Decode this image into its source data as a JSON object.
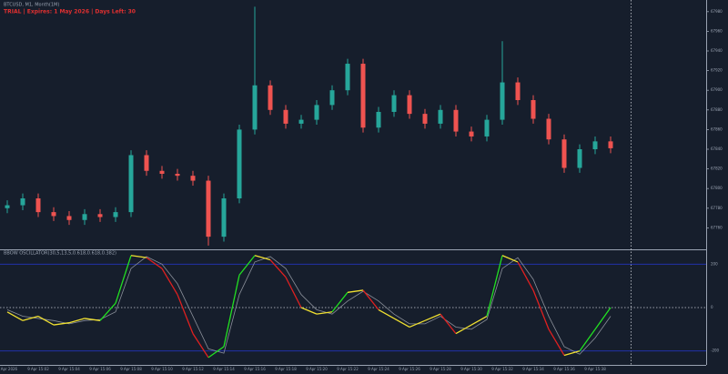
{
  "chart_data": [
    {
      "type": "candlestick",
      "title": "BTCUSD, M1, Month(1M)",
      "annotation": "TRIAL | Expires: 1 May 2026 | Days Left: 30",
      "annotation_color": "#e03030",
      "up_color": "#26a69a",
      "down_color": "#ef5350",
      "categories": [
        "9 Apr 2026",
        null,
        "9 Apr 15:02",
        null,
        "9 Apr 15:04",
        null,
        "9 Apr 15:06",
        null,
        "9 Apr 15:08",
        null,
        "9 Apr 15:10",
        null,
        "9 Apr 15:12",
        null,
        "9 Apr 15:14",
        null,
        "9 Apr 15:16",
        null,
        "9 Apr 15:18",
        null,
        "9 Apr 15:20",
        null,
        "9 Apr 15:22",
        null,
        "9 Apr 15:24",
        null,
        "9 Apr 15:26",
        null,
        "9 Apr 15:28",
        null,
        "9 Apr 15:30",
        null,
        "9 Apr 15:32",
        null,
        "9 Apr 15:34",
        null,
        "9 Apr 15:36",
        null,
        "9 Apr 15:38",
        null
      ],
      "open": [
        67780,
        67783,
        67790,
        67776,
        67772,
        67768,
        67774,
        67771,
        67776,
        67834,
        67818,
        67815,
        67813,
        67808,
        67751,
        67790,
        67860,
        67905,
        67880,
        67866,
        67870,
        67885,
        67900,
        67927,
        67862,
        67878,
        67895,
        67876,
        67866,
        67880,
        67858,
        67853,
        67870,
        67908,
        67890,
        67871,
        67850,
        67821,
        67840,
        67848
      ],
      "high": [
        67788,
        67795,
        67795,
        67781,
        67777,
        67779,
        67779,
        67781,
        67839,
        67839,
        67823,
        67820,
        67818,
        67813,
        67795,
        67865,
        67985,
        67910,
        67885,
        67875,
        67890,
        67905,
        67932,
        67932,
        67883,
        67900,
        67900,
        67881,
        67885,
        67885,
        67863,
        67875,
        67950,
        67913,
        67895,
        67876,
        67855,
        67845,
        67853,
        67853
      ],
      "low": [
        67775,
        67778,
        67771,
        67767,
        67763,
        67763,
        67766,
        67766,
        67771,
        67813,
        67810,
        67808,
        67803,
        67742,
        67746,
        67785,
        67855,
        67875,
        67861,
        67861,
        67865,
        67880,
        67895,
        67857,
        67857,
        67873,
        67871,
        67861,
        67861,
        67853,
        67848,
        67848,
        67865,
        67885,
        67866,
        67845,
        67816,
        67816,
        67835,
        67836
      ],
      "close": [
        67783,
        67790,
        67776,
        67772,
        67768,
        67774,
        67771,
        67776,
        67834,
        67818,
        67815,
        67813,
        67808,
        67751,
        67790,
        67860,
        67905,
        67880,
        67866,
        67870,
        67885,
        67900,
        67927,
        67862,
        67878,
        67895,
        67876,
        67866,
        67880,
        67858,
        67853,
        67870,
        67908,
        67890,
        67871,
        67850,
        67821,
        67840,
        67848,
        67841
      ],
      "ylim": [
        67740,
        67990
      ],
      "yticks": [
        67760,
        67780,
        67800,
        67820,
        67840,
        67860,
        67880,
        67900,
        67920,
        67940,
        67960,
        67980
      ]
    },
    {
      "type": "line",
      "title": "BBOW OSCILLATOR(30,5,13,5,0.618,0.618,0.382)",
      "rise_color": "#22e022",
      "fall_color": "#e02020",
      "flat_color": "#f0e030",
      "level_color": "#2233bb",
      "zero_color": "#c8ccd4",
      "series": [
        {
          "color": "main",
          "values": [
            -20,
            -60,
            -40,
            -80,
            -70,
            -50,
            -60,
            20,
            240,
            230,
            180,
            60,
            -120,
            -230,
            -180,
            150,
            240,
            220,
            140,
            0,
            -30,
            -20,
            70,
            80,
            -10,
            -50,
            -90,
            -60,
            -30,
            -120,
            -80,
            -40,
            240,
            210,
            80,
            -100,
            -220,
            -200,
            -100,
            0
          ]
        },
        {
          "color": "#8a8f99",
          "values": [
            -10,
            -40,
            -50,
            -60,
            -75,
            -60,
            -55,
            -20,
            180,
            235,
            200,
            110,
            -40,
            -190,
            -210,
            60,
            210,
            235,
            180,
            60,
            -10,
            -30,
            30,
            75,
            30,
            -30,
            -75,
            -75,
            -40,
            -90,
            -100,
            -55,
            180,
            230,
            130,
            -40,
            -180,
            -215,
            -140,
            -40
          ]
        }
      ],
      "ylim": [
        -260,
        260
      ],
      "yticks": [
        -200,
        0,
        200
      ]
    }
  ]
}
